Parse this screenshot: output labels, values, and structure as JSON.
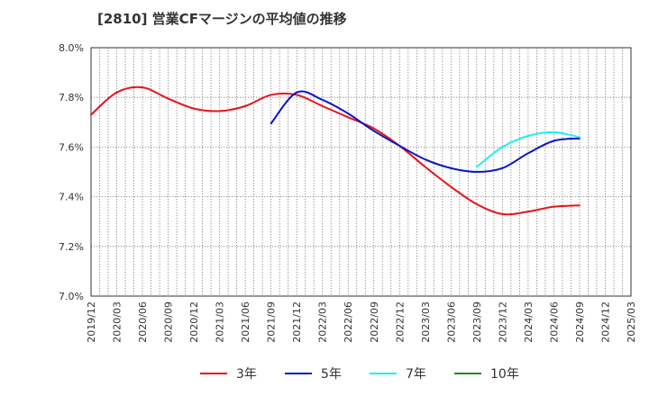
{
  "chart_data": {
    "type": "line",
    "title": "[2810]  営業CFマージンの平均値の推移",
    "xlabel": "",
    "ylabel": "",
    "ylim": [
      7.0,
      8.0
    ],
    "y_ticks": [
      7.0,
      7.2,
      7.4,
      7.6,
      7.8,
      8.0
    ],
    "y_tick_labels": [
      "7.0%",
      "7.2%",
      "7.4%",
      "7.6%",
      "7.8%",
      "8.0%"
    ],
    "x_range": [
      "2019-12",
      "2025-03"
    ],
    "x_tick_labels": [
      "2019/12",
      "2020/03",
      "2020/06",
      "2020/09",
      "2020/12",
      "2021/03",
      "2021/06",
      "2021/09",
      "2021/12",
      "2022/03",
      "2022/06",
      "2022/09",
      "2022/12",
      "2023/03",
      "2023/06",
      "2023/09",
      "2023/12",
      "2024/03",
      "2024/06",
      "2024/09",
      "2024/12",
      "2025/03"
    ],
    "grid": true,
    "legend_position": "bottom",
    "series": [
      {
        "name": "3年",
        "color": "#e8141b",
        "x": [
          "2019-12",
          "2020-03",
          "2020-06",
          "2020-09",
          "2020-12",
          "2021-03",
          "2021-06",
          "2021-09",
          "2021-12",
          "2022-03",
          "2022-06",
          "2022-09",
          "2022-12",
          "2023-03",
          "2023-06",
          "2023-09",
          "2023-12",
          "2024-03",
          "2024-06",
          "2024-09"
        ],
        "values": [
          7.73,
          7.82,
          7.84,
          7.795,
          7.755,
          7.745,
          7.765,
          7.81,
          7.81,
          7.765,
          7.72,
          7.675,
          7.605,
          7.52,
          7.44,
          7.37,
          7.33,
          7.34,
          7.36,
          7.365
        ]
      },
      {
        "name": "5年",
        "color": "#0a14c8",
        "x": [
          "2021-09",
          "2021-12",
          "2022-03",
          "2022-06",
          "2022-09",
          "2022-12",
          "2023-03",
          "2023-06",
          "2023-09",
          "2023-12",
          "2024-03",
          "2024-06",
          "2024-09"
        ],
        "values": [
          7.695,
          7.82,
          7.79,
          7.735,
          7.665,
          7.605,
          7.55,
          7.515,
          7.5,
          7.515,
          7.575,
          7.625,
          7.635
        ]
      },
      {
        "name": "7年",
        "color": "#1ef0f0",
        "x": [
          "2023-09",
          "2023-12",
          "2024-03",
          "2024-06",
          "2024-09"
        ],
        "values": [
          7.52,
          7.6,
          7.645,
          7.66,
          7.64
        ]
      },
      {
        "name": "10年",
        "color": "#1a8c1a",
        "x": [],
        "values": []
      }
    ]
  }
}
